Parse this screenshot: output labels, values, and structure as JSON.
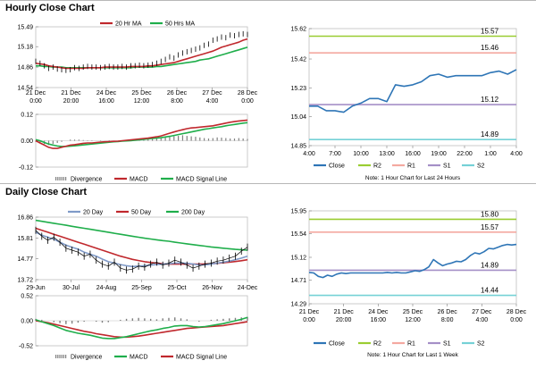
{
  "sections": {
    "hourly_title": "Hourly Close Chart",
    "daily_title": "Daily Close Chart"
  },
  "colors": {
    "price": "#000000",
    "ma_red": "#c0282d",
    "ma_green": "#1fae4b",
    "ma_blue": "#7f9ac8",
    "close_line": "#2e75b6",
    "r2": "#9acd32",
    "r1": "#f4a9a0",
    "s1": "#a58fc7",
    "s2": "#75d1d6",
    "divergence": "#7f7f7f"
  },
  "chart_data": [
    {
      "id": "hourly_price",
      "type": "line",
      "legend": [
        "20 Hr MA",
        "50 Hrs MA"
      ],
      "y_ticks": [
        "15.49",
        "15.18",
        "14.86",
        "14.54"
      ],
      "ylim": [
        14.54,
        15.49
      ],
      "x_ticks": [
        [
          "21 Dec",
          "0:00"
        ],
        [
          "21 Dec",
          "20:00"
        ],
        [
          "24 Dec",
          "16:00"
        ],
        [
          "25 Dec",
          "12:00"
        ],
        [
          "26 Dec",
          "8:00"
        ],
        [
          "27 Dec",
          "4:00"
        ],
        [
          "28 Dec",
          "0:00"
        ]
      ],
      "series": [
        {
          "name": "Price",
          "values": [
            14.95,
            14.92,
            14.88,
            14.84,
            14.86,
            14.83,
            14.82,
            14.81,
            14.82,
            14.85,
            14.84,
            14.86,
            14.87,
            14.86,
            14.86,
            14.85,
            14.86,
            14.87,
            14.86,
            14.86,
            14.87,
            14.86,
            14.88,
            14.88,
            14.89,
            14.88,
            14.89,
            14.9,
            14.92,
            14.95,
            14.98,
            15.02,
            15.0,
            15.05,
            15.08,
            15.1,
            15.12,
            15.14,
            15.16,
            15.2,
            15.22,
            15.28,
            15.3,
            15.33,
            15.32,
            15.36,
            15.35,
            15.37,
            15.38,
            15.37
          ]
        },
        {
          "name": "20 Hr MA",
          "values": [
            14.92,
            14.91,
            14.9,
            14.88,
            14.87,
            14.86,
            14.85,
            14.84,
            14.84,
            14.84,
            14.84,
            14.84,
            14.85,
            14.85,
            14.85,
            14.85,
            14.86,
            14.86,
            14.86,
            14.86,
            14.86,
            14.86,
            14.87,
            14.87,
            14.87,
            14.87,
            14.88,
            14.88,
            14.89,
            14.9,
            14.91,
            14.92,
            14.93,
            14.95,
            14.97,
            14.99,
            15.01,
            15.03,
            15.05,
            15.07,
            15.09,
            15.11,
            15.14,
            15.17,
            15.19,
            15.21,
            15.23,
            15.25,
            15.28,
            15.3
          ]
        },
        {
          "name": "50 Hrs MA",
          "values": [
            14.88,
            14.88,
            14.87,
            14.87,
            14.86,
            14.86,
            14.86,
            14.85,
            14.85,
            14.85,
            14.85,
            14.85,
            14.85,
            14.85,
            14.85,
            14.85,
            14.85,
            14.85,
            14.85,
            14.85,
            14.85,
            14.85,
            14.85,
            14.86,
            14.86,
            14.86,
            14.86,
            14.86,
            14.87,
            14.87,
            14.88,
            14.89,
            14.9,
            14.91,
            14.92,
            14.93,
            14.94,
            14.95,
            14.97,
            14.98,
            14.99,
            15.01,
            15.03,
            15.05,
            15.07,
            15.09,
            15.11,
            15.13,
            15.15,
            15.17
          ]
        }
      ]
    },
    {
      "id": "hourly_macd",
      "type": "line",
      "legend": [
        "Divergence",
        "MACD",
        "MACD Signal Line"
      ],
      "y_ticks": [
        "0.12",
        "0.00",
        "-0.12"
      ],
      "ylim": [
        -0.12,
        0.12
      ],
      "series": [
        {
          "name": "Divergence",
          "values": [
            -0.005,
            -0.01,
            -0.015,
            -0.02,
            -0.015,
            -0.01,
            -0.005,
            0.0,
            0.005,
            0.005,
            0.005,
            0.003,
            0.002,
            0.002,
            0.0,
            -0.002,
            0.0,
            0.002,
            0.0,
            0.0,
            0.002,
            0.004,
            0.005,
            0.004,
            0.004,
            0.005,
            0.006,
            0.008,
            0.01,
            0.012,
            0.015,
            0.018,
            0.02,
            0.022,
            0.025,
            0.022,
            0.02,
            0.018,
            0.015,
            0.012,
            0.01,
            0.012,
            0.015,
            0.014,
            0.012,
            0.01,
            0.01,
            0.012,
            0.01,
            0.008
          ]
        },
        {
          "name": "MACD",
          "values": [
            0.0,
            -0.01,
            -0.02,
            -0.03,
            -0.035,
            -0.035,
            -0.03,
            -0.025,
            -0.02,
            -0.018,
            -0.015,
            -0.012,
            -0.01,
            -0.01,
            -0.008,
            -0.006,
            -0.005,
            -0.004,
            -0.003,
            -0.002,
            0.0,
            0.002,
            0.004,
            0.006,
            0.008,
            0.01,
            0.012,
            0.015,
            0.018,
            0.022,
            0.028,
            0.034,
            0.04,
            0.045,
            0.05,
            0.055,
            0.058,
            0.06,
            0.062,
            0.064,
            0.066,
            0.068,
            0.072,
            0.076,
            0.08,
            0.084,
            0.087,
            0.09,
            0.092,
            0.094
          ]
        },
        {
          "name": "MACD Signal Line",
          "values": [
            0.005,
            0.0,
            -0.008,
            -0.015,
            -0.02,
            -0.024,
            -0.026,
            -0.026,
            -0.025,
            -0.023,
            -0.021,
            -0.019,
            -0.017,
            -0.015,
            -0.013,
            -0.011,
            -0.009,
            -0.007,
            -0.005,
            -0.004,
            -0.002,
            -0.001,
            0.0,
            0.002,
            0.004,
            0.006,
            0.008,
            0.01,
            0.012,
            0.014,
            0.017,
            0.02,
            0.024,
            0.028,
            0.032,
            0.036,
            0.04,
            0.044,
            0.048,
            0.052,
            0.055,
            0.058,
            0.061,
            0.064,
            0.068,
            0.071,
            0.074,
            0.077,
            0.08,
            0.082
          ]
        }
      ]
    },
    {
      "id": "hourly_close",
      "type": "line",
      "y_ticks": [
        "15.62",
        "15.42",
        "15.23",
        "15.04",
        "14.85"
      ],
      "ylim": [
        14.85,
        15.62
      ],
      "x_ticks": [
        "4:00",
        "7:00",
        "10:00",
        "13:00",
        "16:00",
        "19:00",
        "22:00",
        "1:00",
        "4:00"
      ],
      "levels": [
        {
          "name": "R2",
          "value": 15.57,
          "label": "15.57"
        },
        {
          "name": "R1",
          "value": 15.46,
          "label": "15.46"
        },
        {
          "name": "S1",
          "value": 15.12,
          "label": "15.12"
        },
        {
          "name": "S2",
          "value": 14.89,
          "label": "14.89"
        }
      ],
      "series": [
        {
          "name": "Close",
          "values": [
            15.11,
            15.11,
            15.08,
            15.08,
            15.07,
            15.11,
            15.13,
            15.16,
            15.16,
            15.14,
            15.25,
            15.24,
            15.25,
            15.27,
            15.31,
            15.32,
            15.3,
            15.31,
            15.31,
            15.31,
            15.31,
            15.33,
            15.34,
            15.32,
            15.35
          ]
        }
      ],
      "legend": [
        "Close",
        "R2",
        "R1",
        "S1",
        "S2"
      ],
      "note": "Note: 1 Hour Chart for Last 24 Hours"
    },
    {
      "id": "daily_price",
      "type": "line",
      "legend": [
        "20 Day",
        "50 Day",
        "200 Day"
      ],
      "y_ticks": [
        "16.86",
        "15.81",
        "14.77",
        "13.72"
      ],
      "ylim": [
        13.72,
        16.86
      ],
      "x_ticks": [
        "29-Jun",
        "30-Jul",
        "24-Aug",
        "25-Sep",
        "25-Oct",
        "26-Nov",
        "24-Dec"
      ],
      "series": [
        {
          "name": "Price",
          "values": [
            16.2,
            15.9,
            15.7,
            15.85,
            15.6,
            15.3,
            15.2,
            15.1,
            14.9,
            15.0,
            14.7,
            14.5,
            14.4,
            14.6,
            14.3,
            14.2,
            14.25,
            14.4,
            14.35,
            14.5,
            14.6,
            14.45,
            14.55,
            14.7,
            14.6,
            14.45,
            14.3,
            14.4,
            14.5,
            14.55,
            14.65,
            14.7,
            14.8,
            14.9,
            15.15,
            15.35
          ]
        },
        {
          "name": "20 Day",
          "values": [
            16.1,
            15.95,
            15.85,
            15.75,
            15.6,
            15.45,
            15.35,
            15.25,
            15.1,
            15.0,
            14.9,
            14.75,
            14.62,
            14.55,
            14.48,
            14.42,
            14.38,
            14.4,
            14.42,
            14.45,
            14.48,
            14.5,
            14.52,
            14.55,
            14.56,
            14.54,
            14.5,
            14.46,
            14.46,
            14.5,
            14.55,
            14.6,
            14.65,
            14.72,
            14.8,
            14.9
          ]
        },
        {
          "name": "50 Day",
          "values": [
            16.3,
            16.2,
            16.1,
            16.0,
            15.9,
            15.8,
            15.7,
            15.6,
            15.5,
            15.4,
            15.3,
            15.2,
            15.1,
            15.0,
            14.9,
            14.82,
            14.74,
            14.68,
            14.62,
            14.58,
            14.55,
            14.52,
            14.5,
            14.5,
            14.5,
            14.5,
            14.5,
            14.5,
            14.51,
            14.52,
            14.54,
            14.57,
            14.6,
            14.63,
            14.67,
            14.72
          ]
        },
        {
          "name": "200 Day",
          "values": [
            16.7,
            16.65,
            16.6,
            16.55,
            16.5,
            16.45,
            16.4,
            16.35,
            16.3,
            16.25,
            16.2,
            16.15,
            16.1,
            16.05,
            16.0,
            15.95,
            15.9,
            15.85,
            15.8,
            15.76,
            15.72,
            15.68,
            15.65,
            15.6,
            15.56,
            15.52,
            15.48,
            15.44,
            15.4,
            15.36,
            15.33,
            15.3,
            15.27,
            15.24,
            15.22,
            15.2
          ]
        }
      ]
    },
    {
      "id": "daily_macd",
      "type": "line",
      "legend": [
        "Divergence",
        "MACD",
        "MACD Signal Line"
      ],
      "y_ticks": [
        "0.52",
        "0.00",
        "-0.52"
      ],
      "ylim": [
        -0.52,
        0.52
      ],
      "series": [
        {
          "name": "Divergence",
          "values": [
            0.04,
            0.02,
            0.0,
            -0.03,
            -0.05,
            -0.07,
            -0.06,
            -0.04,
            -0.02,
            0.0,
            -0.02,
            -0.04,
            -0.03,
            0.0,
            0.02,
            0.04,
            0.05,
            0.06,
            0.05,
            0.04,
            0.03,
            0.05,
            0.06,
            0.07,
            0.05,
            0.03,
            0.0,
            -0.02,
            0.0,
            0.02,
            0.03,
            0.04,
            0.05,
            0.06,
            0.07,
            0.08
          ]
        },
        {
          "name": "MACD",
          "values": [
            0.02,
            -0.02,
            -0.06,
            -0.1,
            -0.15,
            -0.2,
            -0.23,
            -0.26,
            -0.28,
            -0.3,
            -0.33,
            -0.36,
            -0.37,
            -0.37,
            -0.35,
            -0.33,
            -0.3,
            -0.27,
            -0.24,
            -0.21,
            -0.19,
            -0.16,
            -0.14,
            -0.11,
            -0.1,
            -0.1,
            -0.12,
            -0.13,
            -0.12,
            -0.1,
            -0.08,
            -0.06,
            -0.03,
            0.0,
            0.03,
            0.07
          ]
        },
        {
          "name": "MACD Signal Line",
          "values": [
            0.0,
            -0.02,
            -0.04,
            -0.07,
            -0.1,
            -0.13,
            -0.16,
            -0.19,
            -0.22,
            -0.24,
            -0.27,
            -0.29,
            -0.31,
            -0.33,
            -0.34,
            -0.34,
            -0.33,
            -0.32,
            -0.3,
            -0.28,
            -0.26,
            -0.24,
            -0.22,
            -0.2,
            -0.18,
            -0.16,
            -0.15,
            -0.14,
            -0.13,
            -0.12,
            -0.11,
            -0.1,
            -0.08,
            -0.06,
            -0.04,
            -0.02
          ]
        }
      ]
    },
    {
      "id": "weekly_close",
      "type": "line",
      "y_ticks": [
        "15.95",
        "15.54",
        "15.12",
        "14.71",
        "14.29"
      ],
      "ylim": [
        14.29,
        15.95
      ],
      "x_ticks": [
        [
          "21 Dec",
          "0:00"
        ],
        [
          "21 Dec",
          "20:00"
        ],
        [
          "24 Dec",
          "16:00"
        ],
        [
          "25 Dec",
          "12:00"
        ],
        [
          "26 Dec",
          "8:00"
        ],
        [
          "27 Dec",
          "4:00"
        ],
        [
          "28 Dec",
          "0:00"
        ]
      ],
      "levels": [
        {
          "name": "R2",
          "value": 15.8,
          "label": "15.80"
        },
        {
          "name": "R1",
          "value": 15.57,
          "label": "15.57"
        },
        {
          "name": "S1",
          "value": 14.89,
          "label": "14.89"
        },
        {
          "name": "S2",
          "value": 14.44,
          "label": "14.44"
        }
      ],
      "series": [
        {
          "name": "Close",
          "values": [
            14.85,
            14.84,
            14.78,
            14.76,
            14.8,
            14.78,
            14.82,
            14.84,
            14.83,
            14.84,
            14.84,
            14.84,
            14.84,
            14.84,
            14.84,
            14.84,
            14.84,
            14.85,
            14.84,
            14.85,
            14.84,
            14.84,
            14.86,
            14.88,
            14.87,
            14.9,
            14.95,
            15.08,
            15.02,
            14.97,
            15.0,
            15.02,
            15.05,
            15.04,
            15.08,
            15.15,
            15.2,
            15.18,
            15.22,
            15.28,
            15.27,
            15.3,
            15.33,
            15.35,
            15.34,
            15.35
          ]
        }
      ],
      "legend": [
        "Close",
        "R2",
        "R1",
        "S1",
        "S2"
      ],
      "note": "Note: 1 Hour Chart for Last 1 Week"
    }
  ]
}
